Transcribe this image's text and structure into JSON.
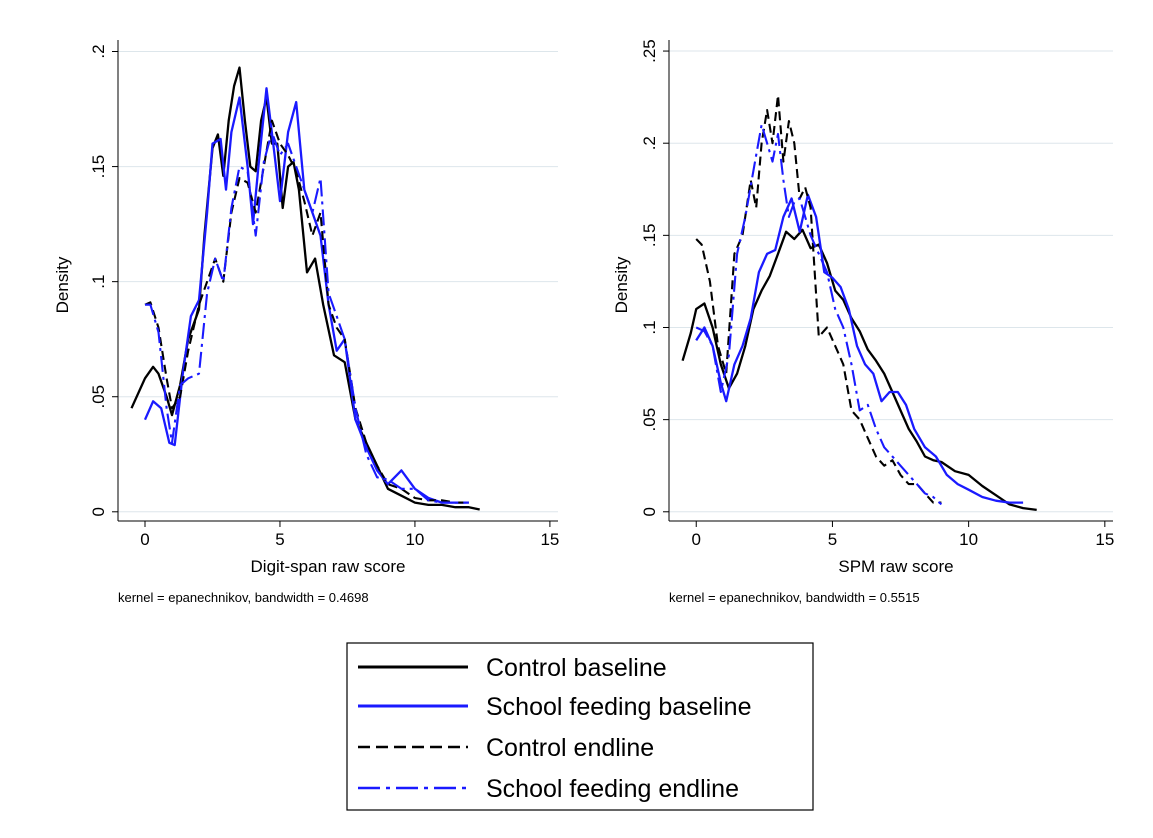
{
  "colors": {
    "control": "#000000",
    "school_feeding": "#1a1aff",
    "grid": "#dde6eb"
  },
  "chart_data": [
    {
      "type": "line",
      "xlabel": "Digit-span raw score",
      "ylabel": "Density",
      "note": "kernel = epanechnikov, bandwidth = 0.4698",
      "xlim": [
        -1,
        15.3
      ],
      "ylim": [
        -0.004,
        0.205
      ],
      "xticks": [
        0,
        5,
        10,
        15
      ],
      "xtick_labels": [
        "0",
        "5",
        "10",
        "15"
      ],
      "yticks": [
        0,
        0.05,
        0.1,
        0.15,
        0.2
      ],
      "ytick_labels": [
        "0",
        ".05",
        ".1",
        ".15",
        ".2"
      ],
      "grid": true,
      "series": [
        {
          "name": "Control baseline",
          "style": "solid",
          "color": "#000000",
          "x": [
            -0.5,
            0,
            0.3,
            0.5,
            0.8,
            1.0,
            1.3,
            1.6,
            2.0,
            2.2,
            2.5,
            2.7,
            2.9,
            3.1,
            3.3,
            3.5,
            3.7,
            3.9,
            4.1,
            4.3,
            4.5,
            4.7,
            4.9,
            5.1,
            5.3,
            5.5,
            5.7,
            6.0,
            6.3,
            6.6,
            7.0,
            7.4,
            7.8,
            8.2,
            8.6,
            9.0,
            9.5,
            10.0,
            10.5,
            11.0,
            11.5,
            12.0,
            12.4
          ],
          "y": [
            0.045,
            0.058,
            0.063,
            0.06,
            0.05,
            0.042,
            0.055,
            0.075,
            0.088,
            0.12,
            0.158,
            0.164,
            0.146,
            0.17,
            0.185,
            0.193,
            0.17,
            0.15,
            0.148,
            0.17,
            0.18,
            0.16,
            0.16,
            0.132,
            0.15,
            0.152,
            0.14,
            0.104,
            0.11,
            0.09,
            0.068,
            0.065,
            0.04,
            0.03,
            0.02,
            0.01,
            0.007,
            0.004,
            0.003,
            0.003,
            0.002,
            0.002,
            0.001
          ]
        },
        {
          "name": "School feeding baseline",
          "style": "solid",
          "color": "#1a1aff",
          "x": [
            0,
            0.3,
            0.6,
            0.9,
            1.1,
            1.4,
            1.7,
            2.0,
            2.3,
            2.5,
            2.8,
            3.0,
            3.2,
            3.5,
            3.8,
            4.0,
            4.2,
            4.5,
            4.8,
            5.0,
            5.3,
            5.6,
            5.9,
            6.2,
            6.5,
            6.8,
            7.1,
            7.4,
            7.8,
            8.2,
            8.6,
            9.0,
            9.5,
            10.0,
            10.5,
            11.0,
            11.5,
            12.0
          ],
          "y": [
            0.04,
            0.048,
            0.045,
            0.03,
            0.029,
            0.06,
            0.085,
            0.092,
            0.13,
            0.16,
            0.162,
            0.14,
            0.165,
            0.18,
            0.15,
            0.125,
            0.15,
            0.184,
            0.155,
            0.135,
            0.165,
            0.178,
            0.14,
            0.13,
            0.12,
            0.09,
            0.07,
            0.075,
            0.04,
            0.028,
            0.018,
            0.012,
            0.018,
            0.01,
            0.006,
            0.004,
            0.004,
            0.004
          ]
        },
        {
          "name": "Control endline",
          "style": "dashed",
          "color": "#000000",
          "x": [
            0,
            0.2,
            0.5,
            0.8,
            1.0,
            1.3,
            1.6,
            2.0,
            2.3,
            2.6,
            2.9,
            3.2,
            3.5,
            3.8,
            4.1,
            4.4,
            4.7,
            5.0,
            5.3,
            5.6,
            5.9,
            6.2,
            6.5,
            6.8,
            7.1,
            7.4,
            7.8,
            8.2,
            8.6,
            9.0,
            9.5,
            10.0,
            10.5,
            11.0,
            11.5,
            12.0
          ],
          "y": [
            0.09,
            0.091,
            0.08,
            0.058,
            0.045,
            0.05,
            0.07,
            0.09,
            0.1,
            0.11,
            0.1,
            0.13,
            0.145,
            0.143,
            0.13,
            0.15,
            0.17,
            0.16,
            0.155,
            0.148,
            0.135,
            0.12,
            0.13,
            0.09,
            0.08,
            0.075,
            0.045,
            0.03,
            0.02,
            0.012,
            0.01,
            0.006,
            0.005,
            0.005,
            0.004,
            0.004
          ]
        },
        {
          "name": "School feeding endline",
          "style": "dashdot",
          "color": "#1a1aff",
          "x": [
            0,
            0.2,
            0.5,
            0.8,
            1.0,
            1.3,
            1.6,
            2.0,
            2.3,
            2.6,
            2.9,
            3.2,
            3.5,
            3.8,
            4.1,
            4.4,
            4.7,
            5.0,
            5.3,
            5.6,
            5.9,
            6.2,
            6.5,
            6.8,
            7.1,
            7.4,
            7.8,
            8.2,
            8.6,
            9.0,
            9.5,
            10.0,
            10.5,
            11.0,
            11.5,
            12.0
          ],
          "y": [
            0.09,
            0.09,
            0.078,
            0.045,
            0.03,
            0.055,
            0.058,
            0.06,
            0.095,
            0.11,
            0.1,
            0.132,
            0.15,
            0.148,
            0.12,
            0.152,
            0.165,
            0.155,
            0.16,
            0.15,
            0.14,
            0.13,
            0.145,
            0.095,
            0.085,
            0.075,
            0.045,
            0.025,
            0.015,
            0.014,
            0.01,
            0.01,
            0.005,
            0.004,
            0.004,
            0.004
          ]
        }
      ]
    },
    {
      "type": "line",
      "xlabel": "SPM raw score",
      "ylabel": "Density",
      "note": "kernel = epanechnikov, bandwidth = 0.5515",
      "xlim": [
        -1,
        15.3
      ],
      "ylim": [
        -0.005,
        0.256
      ],
      "xticks": [
        0,
        5,
        10,
        15
      ],
      "xtick_labels": [
        "0",
        "5",
        "10",
        "15"
      ],
      "yticks": [
        0,
        0.05,
        0.1,
        0.15,
        0.2,
        0.25
      ],
      "ytick_labels": [
        "0",
        ".05",
        ".1",
        ".15",
        ".2",
        ".25"
      ],
      "grid": true,
      "series": [
        {
          "name": "Control baseline",
          "style": "solid",
          "color": "#000000",
          "x": [
            -0.5,
            -0.2,
            0,
            0.3,
            0.6,
            0.9,
            1.2,
            1.5,
            1.8,
            2.1,
            2.4,
            2.7,
            3.0,
            3.3,
            3.6,
            3.9,
            4.2,
            4.5,
            4.8,
            5.1,
            5.4,
            5.7,
            6.0,
            6.3,
            6.6,
            6.9,
            7.2,
            7.5,
            7.8,
            8.1,
            8.4,
            8.7,
            9.0,
            9.5,
            10.0,
            10.5,
            11.0,
            11.5,
            12.0,
            12.5
          ],
          "y": [
            0.082,
            0.097,
            0.11,
            0.113,
            0.1,
            0.08,
            0.067,
            0.075,
            0.09,
            0.11,
            0.12,
            0.128,
            0.14,
            0.152,
            0.148,
            0.153,
            0.143,
            0.145,
            0.135,
            0.12,
            0.115,
            0.105,
            0.098,
            0.088,
            0.082,
            0.075,
            0.065,
            0.055,
            0.045,
            0.038,
            0.03,
            0.028,
            0.027,
            0.022,
            0.02,
            0.014,
            0.009,
            0.004,
            0.002,
            0.001
          ]
        },
        {
          "name": "School feeding baseline",
          "style": "solid",
          "color": "#1a1aff",
          "x": [
            0,
            0.3,
            0.6,
            0.9,
            1.1,
            1.4,
            1.7,
            2.0,
            2.3,
            2.6,
            2.9,
            3.2,
            3.5,
            3.8,
            4.1,
            4.4,
            4.7,
            5.0,
            5.3,
            5.6,
            5.9,
            6.2,
            6.5,
            6.8,
            7.1,
            7.4,
            7.7,
            8.0,
            8.4,
            8.8,
            9.2,
            9.6,
            10.0,
            10.5,
            11.0,
            11.5,
            12.0
          ],
          "y": [
            0.093,
            0.1,
            0.09,
            0.07,
            0.06,
            0.08,
            0.09,
            0.105,
            0.13,
            0.14,
            0.142,
            0.16,
            0.17,
            0.152,
            0.172,
            0.16,
            0.13,
            0.127,
            0.122,
            0.11,
            0.09,
            0.08,
            0.075,
            0.06,
            0.065,
            0.065,
            0.058,
            0.045,
            0.035,
            0.03,
            0.02,
            0.015,
            0.012,
            0.008,
            0.006,
            0.005,
            0.005
          ]
        },
        {
          "name": "Control endline",
          "style": "dashed",
          "color": "#000000",
          "x": [
            0,
            0.2,
            0.5,
            0.8,
            1.1,
            1.4,
            1.7,
            2.0,
            2.2,
            2.4,
            2.6,
            2.8,
            3.0,
            3.2,
            3.4,
            3.6,
            3.8,
            4.0,
            4.2,
            4.5,
            4.8,
            5.1,
            5.4,
            5.7,
            6.0,
            6.3,
            6.6,
            6.9,
            7.2,
            7.5,
            7.8,
            8.1,
            8.4,
            8.7,
            9.0
          ],
          "y": [
            0.148,
            0.145,
            0.125,
            0.09,
            0.075,
            0.14,
            0.15,
            0.18,
            0.165,
            0.2,
            0.218,
            0.2,
            0.226,
            0.19,
            0.212,
            0.2,
            0.17,
            0.176,
            0.165,
            0.095,
            0.1,
            0.09,
            0.08,
            0.055,
            0.05,
            0.04,
            0.03,
            0.025,
            0.028,
            0.02,
            0.015,
            0.015,
            0.01,
            0.005,
            0.005
          ]
        },
        {
          "name": "School feeding endline",
          "style": "dashdot",
          "color": "#1a1aff",
          "x": [
            0,
            0.3,
            0.6,
            0.9,
            1.2,
            1.5,
            1.8,
            2.1,
            2.4,
            2.6,
            2.8,
            3.0,
            3.2,
            3.4,
            3.6,
            3.8,
            4.0,
            4.2,
            4.5,
            4.8,
            5.1,
            5.4,
            5.7,
            6.0,
            6.3,
            6.6,
            6.9,
            7.2,
            7.5,
            7.8,
            8.1,
            8.4,
            8.7,
            9.0
          ],
          "y": [
            0.1,
            0.098,
            0.09,
            0.065,
            0.085,
            0.14,
            0.16,
            0.185,
            0.21,
            0.2,
            0.19,
            0.205,
            0.18,
            0.16,
            0.168,
            0.17,
            0.16,
            0.15,
            0.14,
            0.13,
            0.11,
            0.1,
            0.08,
            0.055,
            0.058,
            0.045,
            0.035,
            0.03,
            0.025,
            0.02,
            0.015,
            0.01,
            0.008,
            0.004
          ]
        }
      ]
    }
  ],
  "legend": {
    "items": [
      {
        "label": "Control baseline",
        "style": "solid",
        "color": "#000000"
      },
      {
        "label": "School feeding baseline",
        "style": "solid",
        "color": "#1a1aff"
      },
      {
        "label": "Control endline",
        "style": "dashed",
        "color": "#000000"
      },
      {
        "label": "School feeding endline",
        "style": "dashdot",
        "color": "#1a1aff"
      }
    ]
  }
}
